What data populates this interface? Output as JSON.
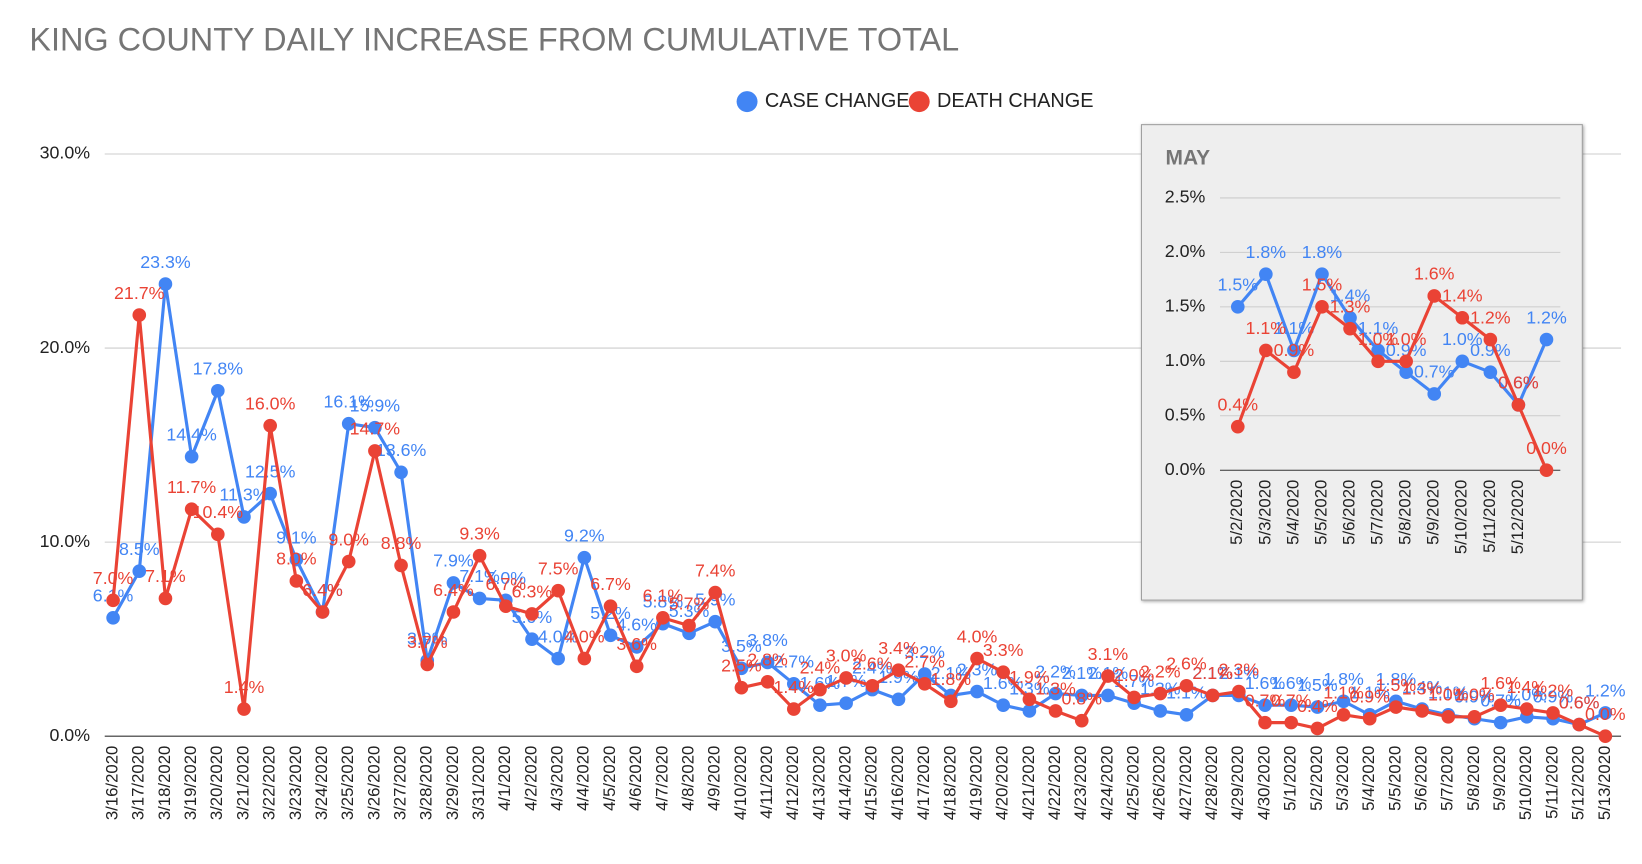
{
  "chart_data": [
    {
      "type": "line",
      "title": "KING COUNTY DAILY INCREASE FROM CUMULATIVE TOTAL",
      "legend": "top",
      "grid": true,
      "categories": [
        "3/16/2020",
        "3/17/2020",
        "3/18/2020",
        "3/19/2020",
        "3/20/2020",
        "3/21/2020",
        "3/22/2020",
        "3/23/2020",
        "3/24/2020",
        "3/25/2020",
        "3/26/2020",
        "3/27/2020",
        "3/28/2020",
        "3/29/2020",
        "3/31/2020",
        "4/1/2020",
        "4/2/2020",
        "4/3/2020",
        "4/4/2020",
        "4/5/2020",
        "4/6/2020",
        "4/7/2020",
        "4/8/2020",
        "4/9/2020",
        "4/10/2020",
        "4/11/2020",
        "4/12/2020",
        "4/13/2020",
        "4/14/2020",
        "4/15/2020",
        "4/16/2020",
        "4/17/2020",
        "4/18/2020",
        "4/19/2020",
        "4/20/2020",
        "4/21/2020",
        "4/22/2020",
        "4/23/2020",
        "4/24/2020",
        "4/25/2020",
        "4/26/2020",
        "4/27/2020",
        "4/28/2020",
        "4/29/2020",
        "4/30/2020",
        "5/1/2020",
        "5/2/2020",
        "5/3/2020",
        "5/4/2020",
        "5/5/2020",
        "5/6/2020",
        "5/7/2020",
        "5/8/2020",
        "5/9/2020",
        "5/10/2020",
        "5/11/2020",
        "5/12/2020",
        "5/13/2020"
      ],
      "ylim": [
        0,
        30
      ],
      "yticks": [
        {
          "value": 0,
          "label": "0.0%"
        },
        {
          "value": 10,
          "label": "10.0%"
        },
        {
          "value": 20,
          "label": "20.0%"
        },
        {
          "value": 30,
          "label": "30.0%"
        }
      ],
      "series": [
        {
          "name": "CASE CHANGE",
          "color": "#4285f4",
          "values": [
            6.1,
            8.5,
            23.3,
            14.4,
            17.8,
            11.3,
            12.5,
            9.1,
            6.4,
            16.1,
            15.9,
            13.6,
            3.9,
            7.9,
            7.1,
            7.0,
            5.0,
            4.0,
            9.2,
            5.2,
            4.6,
            5.8,
            5.3,
            5.9,
            3.5,
            3.8,
            2.7,
            1.6,
            1.7,
            2.4,
            1.9,
            3.2,
            2.1,
            2.3,
            1.6,
            1.3,
            2.2,
            2.1,
            2.1,
            1.7,
            1.3,
            1.1,
            2.1,
            2.1,
            1.6,
            1.6,
            1.5,
            1.8,
            1.1,
            1.8,
            1.4,
            1.1,
            0.9,
            0.7,
            1.0,
            0.9,
            0.6,
            1.2
          ],
          "value_labels": [
            "6.1%",
            "8.5%",
            "23.3%",
            "14.4%",
            "17.8%",
            "11.3%",
            "12.5%",
            "9.1%",
            "6.4%",
            "16.1%",
            "15.9%",
            "13.6%",
            "3.9%",
            "7.9%",
            "7.1%",
            "7.0%",
            "5.0%",
            "4.0%",
            "9.2%",
            "5.2%",
            "4.6%",
            "5.8%",
            "5.3%",
            "5.9%",
            "3.5%",
            "3.8%",
            "2.7%",
            "1.6%",
            "1.7%",
            "2.4%",
            "1.9%",
            "3.2%",
            "2.1%",
            "2.3%",
            "1.6%",
            "1.3%",
            "2.2%",
            "2.1%",
            "2.1%",
            "1.7%",
            "1.3%",
            "1.1%",
            "2.1%",
            "2.1%",
            "1.6%",
            "1.6%",
            "1.5%",
            "1.8%",
            "1.1%",
            "1.8%",
            "1.4%",
            "1.1%",
            "0.9%",
            "0.7%",
            "1.0%",
            "0.9%",
            "0.6%",
            "1.2%"
          ]
        },
        {
          "name": "DEATH CHANGE",
          "color": "#ea4335",
          "values": [
            7.0,
            21.7,
            7.1,
            11.7,
            10.4,
            1.4,
            16.0,
            8.0,
            6.4,
            9.0,
            14.7,
            8.8,
            3.7,
            6.4,
            9.3,
            6.7,
            6.3,
            7.5,
            4.0,
            6.7,
            3.6,
            6.1,
            5.7,
            7.4,
            2.5,
            2.8,
            1.4,
            2.4,
            3.0,
            2.6,
            3.4,
            2.7,
            1.8,
            4.0,
            3.3,
            1.9,
            1.3,
            0.8,
            3.1,
            2.0,
            2.2,
            2.6,
            2.1,
            2.3,
            0.7,
            0.7,
            0.4,
            1.1,
            0.9,
            1.5,
            1.3,
            1.0,
            1.0,
            1.6,
            1.4,
            1.2,
            0.6,
            0.0
          ],
          "value_labels": [
            "7.0%",
            "21.7%",
            "7.1%",
            "11.7%",
            "10.4%",
            "1.4%",
            "16.0%",
            "8.0%",
            "6.4%",
            "9.0%",
            "14.7%",
            "8.8%",
            "3.7%",
            "6.4%",
            "9.3%",
            "6.7%",
            "6.3%",
            "7.5%",
            "4.0%",
            "6.7%",
            "3.6%",
            "6.1%",
            "5.7%",
            "7.4%",
            "2.5%",
            "2.8%",
            "1.4%",
            "2.4%",
            "3.0%",
            "2.6%",
            "3.4%",
            "2.7%",
            "1.8%",
            "4.0%",
            "3.3%",
            "1.9%",
            "1.3%",
            "0.8%",
            "3.1%",
            "2.0%",
            "2.2%",
            "2.6%",
            "2.1%",
            "2.3%",
            "0.7%",
            "0.7%",
            "0.4%",
            "1.1%",
            "0.9%",
            "1.5%",
            "1.3%",
            "1.0%",
            "1.0%",
            "1.6%",
            "1.4%",
            "1.2%",
            "0.6%",
            "0.0%"
          ]
        }
      ]
    },
    {
      "type": "line",
      "title": "MAY",
      "grid": true,
      "categories": [
        "5/2/2020",
        "5/3/2020",
        "5/4/2020",
        "5/5/2020",
        "5/6/2020",
        "5/7/2020",
        "5/8/2020",
        "5/9/2020",
        "5/10/2020",
        "5/11/2020",
        "5/12/2020",
        null
      ],
      "ylim": [
        0,
        2.5
      ],
      "yticks": [
        {
          "value": 0,
          "label": "0.0%"
        },
        {
          "value": 0.5,
          "label": "0.5%"
        },
        {
          "value": 1,
          "label": "1.0%"
        },
        {
          "value": 1.5,
          "label": "1.5%"
        },
        {
          "value": 2,
          "label": "2.0%"
        },
        {
          "value": 2.5,
          "label": "2.5%"
        }
      ],
      "series": [
        {
          "name": "CASE CHANGE",
          "color": "#4285f4",
          "values": [
            1.5,
            1.8,
            1.1,
            1.8,
            1.4,
            1.1,
            0.9,
            0.7,
            1.0,
            0.9,
            0.6,
            1.2
          ],
          "value_labels": [
            "1.5%",
            "1.8%",
            "1.1%",
            "1.8%",
            "1.4%",
            "1.1%",
            "0.9%",
            "0.7%",
            "1.0%",
            "0.9%",
            "0.6%",
            "1.2%"
          ]
        },
        {
          "name": "DEATH CHANGE",
          "color": "#ea4335",
          "values": [
            0.4,
            1.1,
            0.9,
            1.5,
            1.3,
            1.0,
            1.0,
            1.6,
            1.4,
            1.2,
            0.6,
            0.0
          ],
          "value_labels": [
            "0.4%",
            "1.1%",
            "0.9%",
            "1.5%",
            "1.3%",
            "1.0%",
            "1.0%",
            "1.6%",
            "1.4%",
            "1.2%",
            "0.6%",
            "0.0%"
          ]
        }
      ]
    }
  ]
}
